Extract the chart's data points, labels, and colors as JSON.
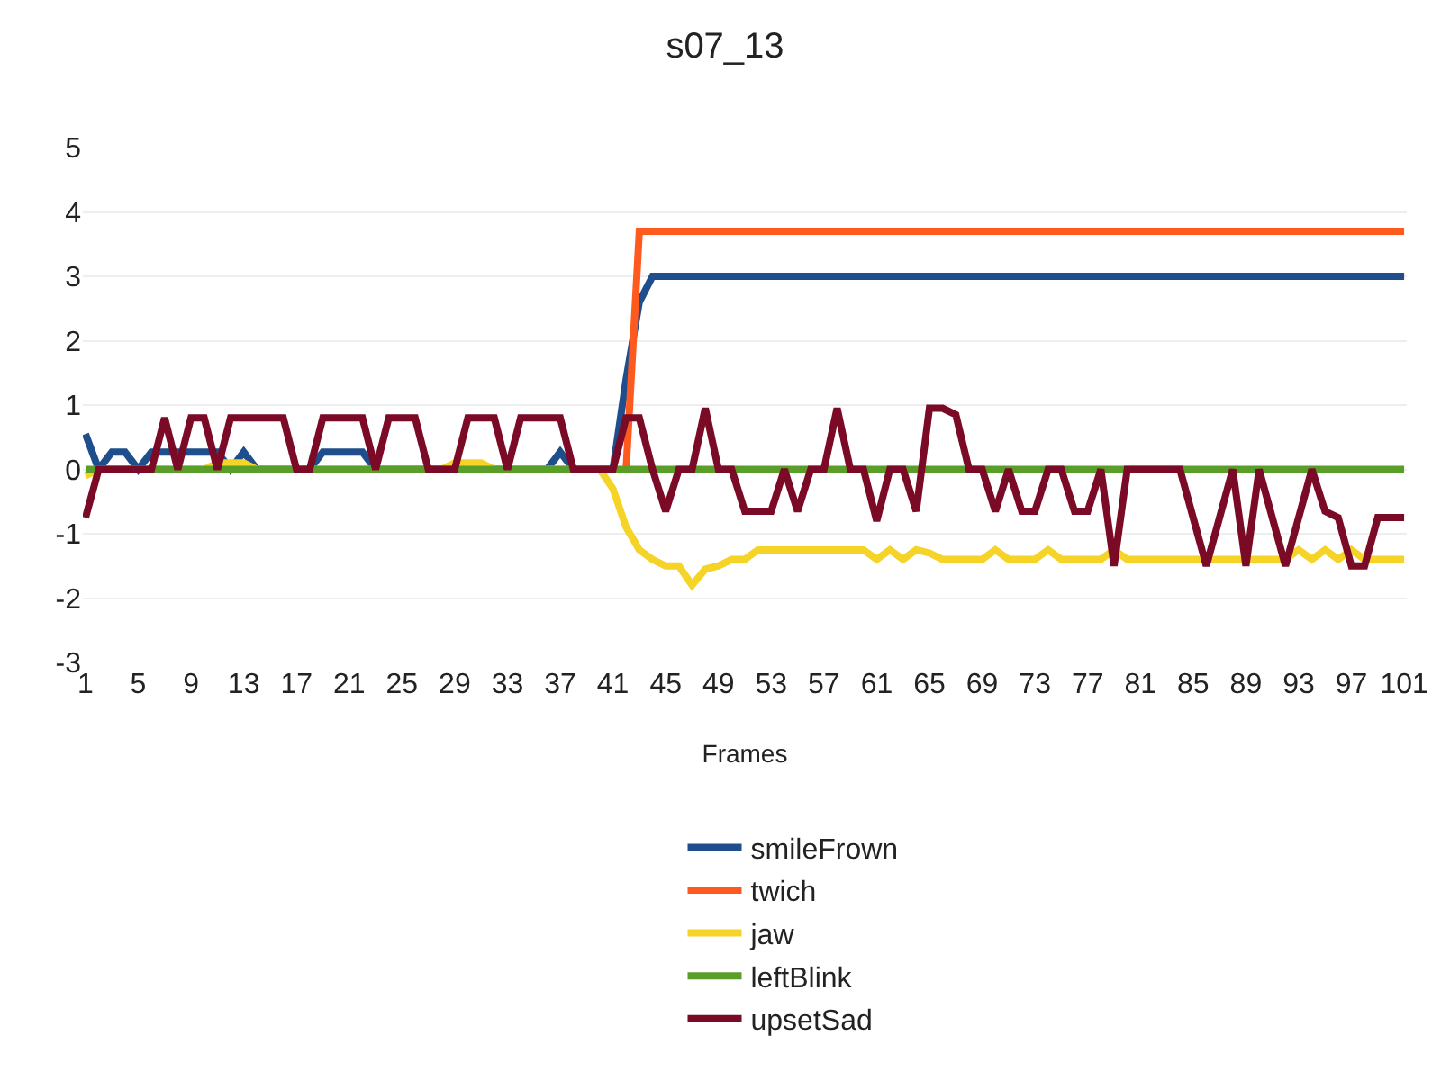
{
  "chart_data": {
    "type": "line",
    "title": "s07_13",
    "xlabel": "Frames",
    "x": [
      1,
      2,
      3,
      4,
      5,
      6,
      7,
      8,
      9,
      10,
      11,
      12,
      13,
      14,
      15,
      16,
      17,
      18,
      19,
      20,
      21,
      22,
      23,
      24,
      25,
      26,
      27,
      28,
      29,
      30,
      31,
      32,
      33,
      34,
      35,
      36,
      37,
      38,
      39,
      40,
      41,
      42,
      43,
      44,
      45,
      46,
      47,
      48,
      49,
      50,
      51,
      52,
      53,
      54,
      55,
      56,
      57,
      58,
      59,
      60,
      61,
      62,
      63,
      64,
      65,
      66,
      67,
      68,
      69,
      70,
      71,
      72,
      73,
      74,
      75,
      76,
      77,
      78,
      79,
      80,
      81,
      82,
      83,
      84,
      85,
      86,
      87,
      88,
      89,
      90,
      91,
      92,
      93,
      94,
      95,
      96,
      97,
      98,
      99,
      100,
      101
    ],
    "xlim": [
      0.8,
      101.2
    ],
    "xticks": [
      1,
      5,
      9,
      13,
      17,
      21,
      25,
      29,
      33,
      37,
      41,
      45,
      49,
      53,
      57,
      61,
      65,
      69,
      73,
      77,
      81,
      85,
      89,
      93,
      97,
      101
    ],
    "ylim": [
      -3,
      5
    ],
    "yticks": [
      -3,
      -2,
      -1,
      0,
      1,
      2,
      3,
      4,
      5
    ],
    "grid": "y",
    "legend": "bottom",
    "marker": "none",
    "line_style": "solid",
    "series": [
      {
        "name": "smileFrown",
        "color": "#1f4e8c",
        "values": [
          0.55,
          0,
          0.27,
          0.27,
          0,
          0.27,
          0.27,
          0.27,
          0.27,
          0.27,
          0.27,
          0,
          0.27,
          0,
          0,
          0,
          0,
          0,
          0.27,
          0.27,
          0.27,
          0.27,
          0,
          0,
          0,
          0,
          0,
          0,
          0,
          0,
          0,
          0,
          0,
          0,
          0,
          0,
          0.27,
          0,
          0,
          0,
          0,
          1.4,
          2.6,
          3,
          3,
          3,
          3,
          3,
          3,
          3,
          3,
          3,
          3,
          3,
          3,
          3,
          3,
          3,
          3,
          3,
          3,
          3,
          3,
          3,
          3,
          3,
          3,
          3,
          3,
          3,
          3,
          3,
          3,
          3,
          3,
          3,
          3,
          3,
          3,
          3,
          3,
          3,
          3,
          3,
          3,
          3,
          3,
          3,
          3,
          3,
          3,
          3,
          3,
          3,
          3,
          3,
          3,
          3,
          3,
          3,
          3
        ]
      },
      {
        "name": "twich",
        "color": "#ff5a1e",
        "values": [
          null,
          null,
          null,
          null,
          null,
          null,
          null,
          null,
          null,
          null,
          null,
          null,
          null,
          null,
          null,
          null,
          null,
          null,
          null,
          null,
          null,
          null,
          null,
          null,
          null,
          null,
          null,
          null,
          null,
          null,
          null,
          null,
          null,
          null,
          null,
          null,
          null,
          null,
          null,
          null,
          null,
          0,
          3.7,
          3.7,
          3.7,
          3.7,
          3.7,
          3.7,
          3.7,
          3.7,
          3.7,
          3.7,
          3.7,
          3.7,
          3.7,
          3.7,
          3.7,
          3.7,
          3.7,
          3.7,
          3.7,
          3.7,
          3.7,
          3.7,
          3.7,
          3.7,
          3.7,
          3.7,
          3.7,
          3.7,
          3.7,
          3.7,
          3.7,
          3.7,
          3.7,
          3.7,
          3.7,
          3.7,
          3.7,
          3.7,
          3.7,
          3.7,
          3.7,
          3.7,
          3.7,
          3.7,
          3.7,
          3.7,
          3.7,
          3.7,
          3.7,
          3.7,
          3.7,
          3.7,
          3.7,
          3.7,
          3.7,
          3.7,
          3.7,
          3.7,
          3.7
        ]
      },
      {
        "name": "jaw",
        "color": "#f5d327",
        "values": [
          -0.1,
          0,
          0,
          0,
          0,
          0,
          0,
          0,
          0,
          0,
          0.1,
          0.1,
          0.1,
          0,
          0,
          0,
          0,
          0,
          0,
          0,
          0,
          0,
          0,
          0,
          0,
          0,
          0,
          0,
          0.1,
          0.1,
          0.1,
          0,
          0,
          0,
          0,
          0,
          0,
          0,
          0,
          0,
          -0.3,
          -0.9,
          -1.25,
          -1.4,
          -1.5,
          -1.5,
          -1.8,
          -1.55,
          -1.5,
          -1.4,
          -1.4,
          -1.25,
          -1.25,
          -1.25,
          -1.25,
          -1.25,
          -1.25,
          -1.25,
          -1.25,
          -1.25,
          -1.4,
          -1.25,
          -1.4,
          -1.25,
          -1.3,
          -1.4,
          -1.4,
          -1.4,
          -1.4,
          -1.25,
          -1.4,
          -1.4,
          -1.4,
          -1.25,
          -1.4,
          -1.4,
          -1.4,
          -1.4,
          -1.25,
          -1.4,
          -1.4,
          -1.4,
          -1.4,
          -1.4,
          -1.4,
          -1.4,
          -1.4,
          -1.4,
          -1.4,
          -1.4,
          -1.4,
          -1.4,
          -1.25,
          -1.4,
          -1.25,
          -1.4,
          -1.25,
          -1.4,
          -1.4,
          -1.4,
          -1.4
        ]
      },
      {
        "name": "leftBlink",
        "color": "#5a9e2a",
        "values": [
          0,
          0,
          0,
          0,
          0,
          0,
          0,
          0,
          0,
          0,
          0,
          0,
          0,
          0,
          0,
          0,
          0,
          0,
          0,
          0,
          0,
          0,
          0,
          0,
          0,
          0,
          0,
          0,
          0,
          0,
          0,
          0,
          0,
          0,
          0,
          0,
          0,
          0,
          0,
          0,
          0,
          0,
          0,
          0,
          0,
          0,
          0,
          0,
          0,
          0,
          0,
          0,
          0,
          0,
          0,
          0,
          0,
          0,
          0,
          0,
          0,
          0,
          0,
          0,
          0,
          0,
          0,
          0,
          0,
          0,
          0,
          0,
          0,
          0,
          0,
          0,
          0,
          0,
          0,
          0,
          0,
          0,
          0,
          0,
          0,
          0,
          0,
          0,
          0,
          0,
          0,
          0,
          0,
          0,
          0,
          0,
          0,
          0,
          0,
          0,
          0
        ]
      },
      {
        "name": "upsetSad",
        "color": "#7b0a26",
        "values": [
          -0.75,
          0,
          0,
          0,
          0,
          0,
          0.8,
          0,
          0.8,
          0.8,
          0,
          0.8,
          0.8,
          0.8,
          0.8,
          0.8,
          0,
          0,
          0.8,
          0.8,
          0.8,
          0.8,
          0,
          0.8,
          0.8,
          0.8,
          0,
          0,
          0,
          0.8,
          0.8,
          0.8,
          0,
          0.8,
          0.8,
          0.8,
          0.8,
          0,
          0,
          0,
          0,
          0.8,
          0.8,
          0,
          -0.65,
          0,
          0,
          0.95,
          0,
          0,
          -0.65,
          -0.65,
          -0.65,
          0,
          -0.65,
          0,
          0,
          0.95,
          0,
          0,
          -0.8,
          0,
          0,
          -0.65,
          0.95,
          0.95,
          0.85,
          0,
          0,
          -0.65,
          0,
          -0.65,
          -0.65,
          0,
          0,
          -0.65,
          -0.65,
          0,
          -1.5,
          0,
          0,
          0,
          0,
          0,
          -0.75,
          -1.5,
          -0.75,
          0,
          -1.5,
          0,
          -0.75,
          -1.5,
          -0.75,
          0,
          -0.65,
          -0.75,
          -1.5,
          -1.5,
          -0.75,
          -0.75,
          -0.75
        ]
      }
    ]
  }
}
